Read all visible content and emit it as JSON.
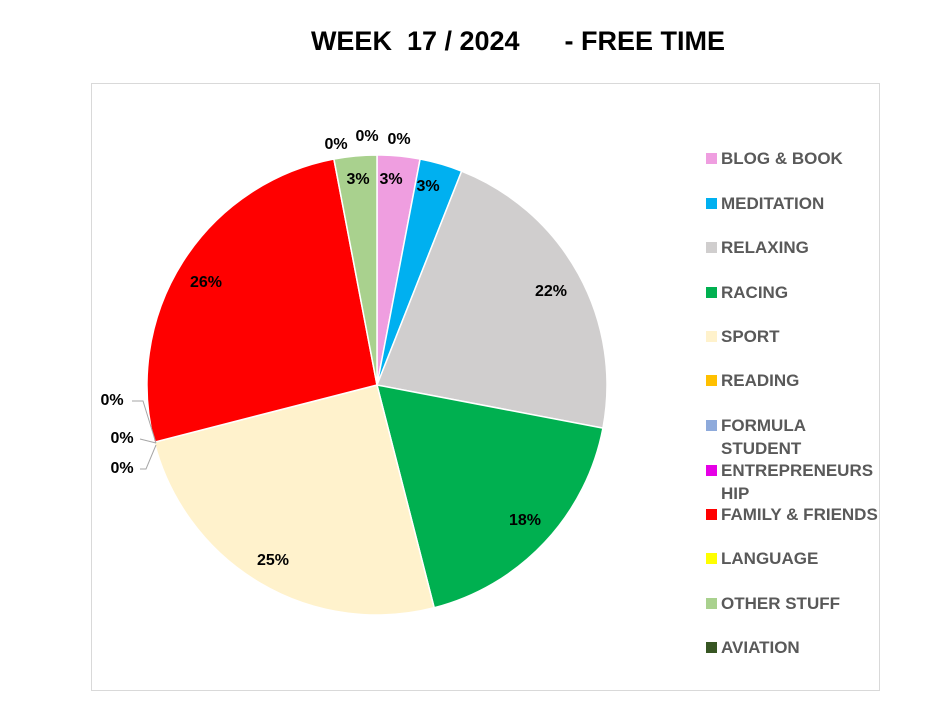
{
  "title": "WEEK  17 / 2024      - FREE TIME",
  "chart_data": {
    "type": "pie",
    "title": "WEEK  17 / 2024      - FREE TIME",
    "legend_position": "right",
    "slices": [
      {
        "name": "BLOG & BOOK",
        "value": 3,
        "label": "3%",
        "color": "#ef9ee0"
      },
      {
        "name": "MEDITATION",
        "value": 3,
        "label": "3%",
        "color": "#00b0f0"
      },
      {
        "name": "RELAXING",
        "value": 22,
        "label": "22%",
        "color": "#d0cece"
      },
      {
        "name": "RACING",
        "value": 18,
        "label": "18%",
        "color": "#00b050"
      },
      {
        "name": "SPORT",
        "value": 25,
        "label": "25%",
        "color": "#fff2cc"
      },
      {
        "name": "READING",
        "value": 0,
        "label": "0%",
        "color": "#ffc000"
      },
      {
        "name": "FORMULA STUDENT",
        "value": 0,
        "label": "0%",
        "color": "#8eaadb"
      },
      {
        "name": "ENTREPRENEURSHIP",
        "value": 0,
        "label": "0%",
        "color": "#e600e6"
      },
      {
        "name": "FAMILY & FRIENDS",
        "value": 26,
        "label": "26%",
        "color": "#ff0000"
      },
      {
        "name": "LANGUAGE",
        "value": 0,
        "label": "0%",
        "color": "#ffff00"
      },
      {
        "name": "OTHER STUFF",
        "value": 3,
        "label": "3%",
        "color": "#a9d18e"
      },
      {
        "name": "AVIATION",
        "value": 0,
        "label": "0%",
        "color": "#375623"
      }
    ]
  },
  "legend": {
    "items": [
      {
        "label": "BLOG & BOOK",
        "color": "#ef9ee0"
      },
      {
        "label": "MEDITATION",
        "color": "#00b0f0"
      },
      {
        "label": "RELAXING",
        "color": "#d0cece"
      },
      {
        "label": "RACING",
        "color": "#00b050"
      },
      {
        "label": "SPORT",
        "color": "#fff2cc"
      },
      {
        "label": "READING",
        "color": "#ffc000"
      },
      {
        "label": "FORMULA STUDENT",
        "color": "#8eaadb"
      },
      {
        "label": "ENTREPRENEURSHIP",
        "color": "#e600e6"
      },
      {
        "label": "FAMILY & FRIENDS",
        "color": "#ff0000"
      },
      {
        "label": "LANGUAGE",
        "color": "#ffff00"
      },
      {
        "label": "OTHER STUFF",
        "color": "#a9d18e"
      },
      {
        "label": "AVIATION",
        "color": "#375623"
      }
    ]
  }
}
